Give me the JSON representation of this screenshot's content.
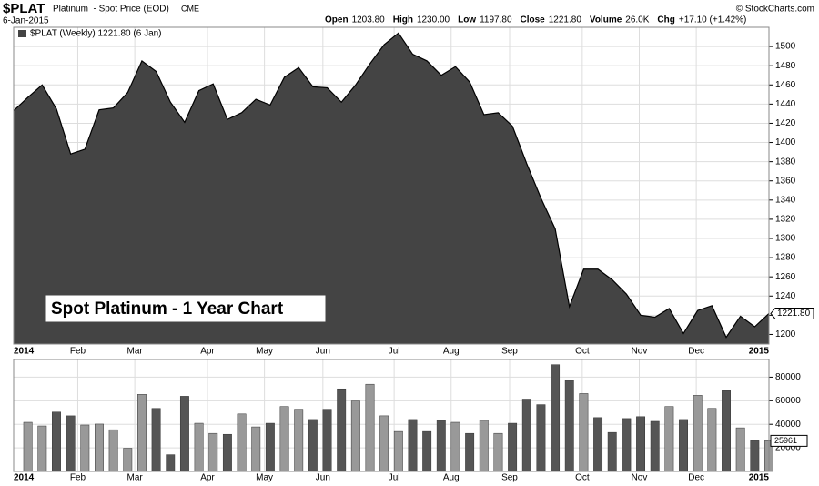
{
  "header": {
    "symbol": "$PLAT",
    "name": "Platinum  - Spot Price (EOD)",
    "exchange": "CME",
    "date": "6-Jan-2015",
    "stats": [
      [
        "Open",
        "1203.80"
      ],
      [
        "High",
        "1230.00"
      ],
      [
        "Low",
        "1197.80"
      ],
      [
        "Close",
        "1221.80"
      ],
      [
        "Volume",
        "26.0K"
      ],
      [
        "Chg",
        "+17.10 (+1.42%)"
      ]
    ],
    "credit": "© StockCharts.com"
  },
  "chart_data": [
    {
      "type": "area",
      "annotation": "Spot Platinum - 1 Year Chart",
      "x": [
        0,
        1,
        2,
        3,
        4,
        5,
        6,
        7,
        8,
        9,
        10,
        11,
        12,
        13,
        14,
        15,
        16,
        17,
        18,
        19,
        20,
        21,
        22,
        23,
        24,
        25,
        26,
        27,
        28,
        29,
        30,
        31,
        32,
        33,
        34,
        35,
        36,
        37,
        38,
        39,
        40,
        41,
        42,
        43,
        44,
        45,
        46,
        47,
        48,
        49,
        50,
        51,
        52,
        53
      ],
      "series": [
        {
          "name": "$PLAT (Weekly) 1221.80 (6 Jan)",
          "color": "#444444",
          "values": [
            1433,
            1447,
            1460,
            1435,
            1388,
            1393,
            1434,
            1436,
            1452,
            1485,
            1474,
            1442,
            1421,
            1454,
            1461,
            1424,
            1431,
            1445,
            1439,
            1468,
            1478,
            1458,
            1457,
            1442,
            1460,
            1482,
            1502,
            1514,
            1492,
            1485,
            1470,
            1479,
            1463,
            1429,
            1431,
            1417,
            1378,
            1342,
            1310,
            1229,
            1268,
            1268,
            1257,
            1242,
            1220,
            1218,
            1227,
            1201,
            1225,
            1230,
            1197,
            1219,
            1208,
            1221.8
          ],
          "value_labels": [
            null,
            null,
            null,
            null,
            null,
            null,
            null,
            null,
            null,
            null,
            null,
            null,
            null,
            null,
            null,
            null,
            null,
            null,
            null,
            null,
            null,
            null,
            null,
            null,
            null,
            null,
            null,
            null,
            null,
            null,
            null,
            null,
            null,
            null,
            null,
            null,
            null,
            null,
            null,
            null,
            null,
            null,
            null,
            null,
            null,
            null,
            null,
            null,
            null,
            null,
            null,
            null,
            null,
            "1221.80"
          ]
        }
      ],
      "xlim": [
        0,
        53
      ],
      "xticks": [
        {
          "value": 0,
          "label": "2014"
        },
        {
          "value": 4.5,
          "label": "Feb"
        },
        {
          "value": 8.5,
          "label": "Mar"
        },
        {
          "value": 13.6,
          "label": "Apr"
        },
        {
          "value": 17.6,
          "label": "May"
        },
        {
          "value": 21.7,
          "label": "Jun"
        },
        {
          "value": 26.7,
          "label": "Jul"
        },
        {
          "value": 30.7,
          "label": "Aug"
        },
        {
          "value": 34.8,
          "label": "Sep"
        },
        {
          "value": 39.9,
          "label": "Oct"
        },
        {
          "value": 43.9,
          "label": "Nov"
        },
        {
          "value": 47.9,
          "label": "Dec"
        },
        {
          "value": 53,
          "label": "2015"
        }
      ],
      "ylim": [
        1190,
        1520
      ],
      "yticks": [
        1200,
        1220,
        1240,
        1260,
        1280,
        1300,
        1320,
        1340,
        1360,
        1380,
        1400,
        1420,
        1440,
        1460,
        1480,
        1500
      ],
      "grid": true
    },
    {
      "type": "bar",
      "x": [
        1,
        2,
        3,
        4,
        5,
        6,
        7,
        8,
        9,
        10,
        11,
        12,
        13,
        14,
        15,
        16,
        17,
        18,
        19,
        20,
        21,
        22,
        23,
        24,
        25,
        26,
        27,
        28,
        29,
        30,
        31,
        32,
        33,
        34,
        35,
        36,
        37,
        38,
        39,
        40,
        41,
        42,
        43,
        44,
        45,
        46,
        47,
        48,
        49,
        50,
        51,
        52,
        53
      ],
      "values": [
        41700,
        38600,
        50400,
        47200,
        39400,
        40200,
        35400,
        19700,
        65400,
        53500,
        14200,
        63800,
        40900,
        32300,
        31500,
        48800,
        37800,
        40900,
        55100,
        52800,
        44100,
        52800,
        70100,
        59800,
        74000,
        47200,
        33900,
        44100,
        33900,
        43300,
        41700,
        32300,
        43300,
        32300,
        40900,
        61400,
        56700,
        90600,
        77200,
        66100,
        45700,
        33100,
        44900,
        46500,
        42500,
        55100,
        44100,
        64600,
        53500,
        68500,
        37000,
        26000,
        25961
      ],
      "colors": [
        "#999999",
        "#999999",
        "#555555",
        "#555555",
        "#999999",
        "#999999",
        "#999999",
        "#999999",
        "#999999",
        "#555555",
        "#555555",
        "#555555",
        "#999999",
        "#999999",
        "#555555",
        "#999999",
        "#999999",
        "#555555",
        "#999999",
        "#999999",
        "#555555",
        "#555555",
        "#555555",
        "#999999",
        "#999999",
        "#999999",
        "#999999",
        "#555555",
        "#555555",
        "#555555",
        "#999999",
        "#555555",
        "#999999",
        "#999999",
        "#555555",
        "#555555",
        "#555555",
        "#555555",
        "#555555",
        "#999999",
        "#555555",
        "#555555",
        "#555555",
        "#555555",
        "#555555",
        "#999999",
        "#555555",
        "#999999",
        "#999999",
        "#555555",
        "#999999",
        "#555555",
        "#999999"
      ],
      "xlim": [
        0,
        53
      ],
      "xticks": [
        {
          "value": 0,
          "label": "2014"
        },
        {
          "value": 4.5,
          "label": "Feb"
        },
        {
          "value": 8.5,
          "label": "Mar"
        },
        {
          "value": 13.6,
          "label": "Apr"
        },
        {
          "value": 17.6,
          "label": "May"
        },
        {
          "value": 21.7,
          "label": "Jun"
        },
        {
          "value": 26.7,
          "label": "Jul"
        },
        {
          "value": 30.7,
          "label": "Aug"
        },
        {
          "value": 34.8,
          "label": "Sep"
        },
        {
          "value": 39.9,
          "label": "Oct"
        },
        {
          "value": 43.9,
          "label": "Nov"
        },
        {
          "value": 47.9,
          "label": "Dec"
        },
        {
          "value": 53,
          "label": "2015"
        }
      ],
      "ylim": [
        0,
        95000
      ],
      "yticks": [
        20000,
        40000,
        60000,
        80000
      ],
      "grid": true
    }
  ]
}
